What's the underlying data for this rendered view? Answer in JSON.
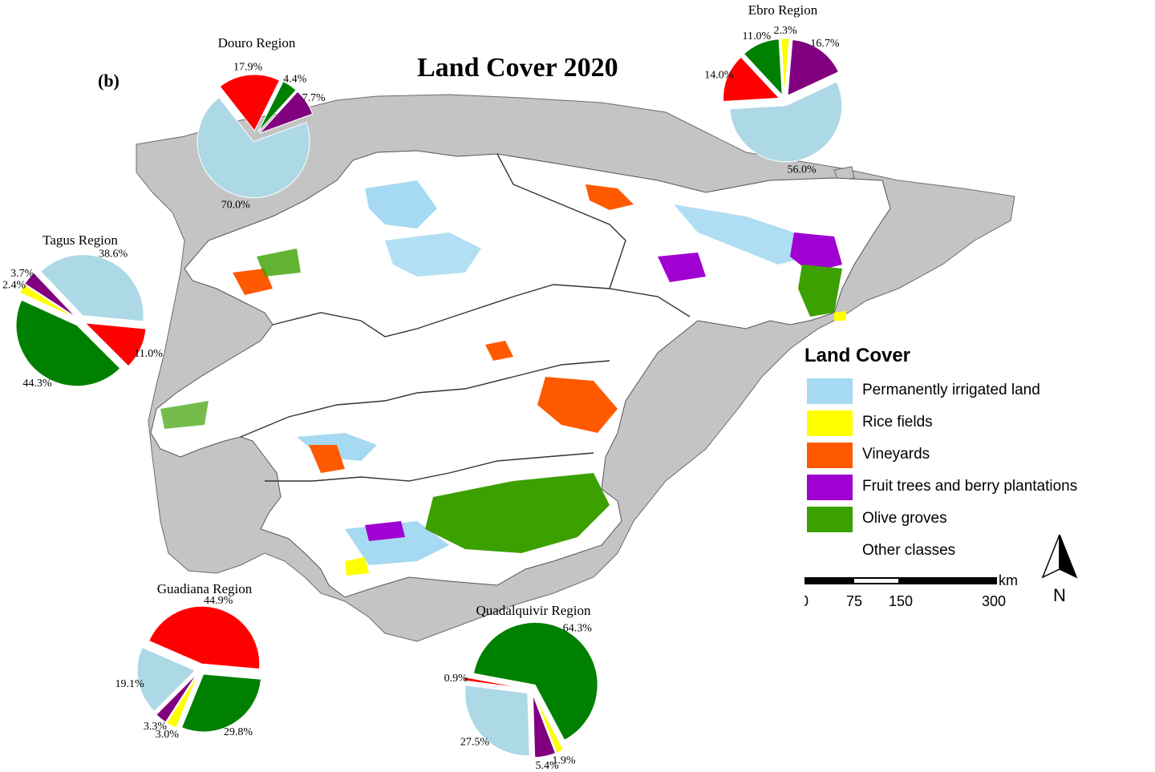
{
  "title": "Land Cover 2020",
  "panel_label": "(b)",
  "legend": {
    "title": "Land Cover",
    "items": [
      {
        "label": "Permanently irrigated land",
        "color": "#a6d9f2"
      },
      {
        "label": "Rice fields",
        "color": "#ffff00"
      },
      {
        "label": "Vineyards",
        "color": "#ff5a00"
      },
      {
        "label": "Fruit trees and berry plantations",
        "color": "#a000d2"
      },
      {
        "label": "Olive groves",
        "color": "#3ca000"
      },
      {
        "label": "Other classes",
        "color": "#ffffff"
      }
    ]
  },
  "scale_bar": {
    "unit": "km",
    "ticks": [
      "0",
      "75",
      "150",
      "300"
    ]
  },
  "north_label": "N",
  "pie_colors": {
    "irrigated": "#add8e6",
    "rice": "#ffff00",
    "vineyards": "#ff0000",
    "fruit": "#800080",
    "olive": "#008000"
  },
  "chart_data": [
    {
      "type": "pie",
      "title": "Douro Region",
      "labels": [
        "Permanently irrigated land",
        "Vineyards",
        "Olive groves",
        "Fruit trees and berry plantations"
      ],
      "values": [
        70.0,
        17.9,
        4.4,
        7.7
      ],
      "value_labels": [
        "70.0%",
        "17.9%",
        "4.4%",
        "7.7%"
      ]
    },
    {
      "type": "pie",
      "title": "Ebro Region",
      "labels": [
        "Permanently irrigated land",
        "Vineyards",
        "Olive groves",
        "Rice fields",
        "Fruit trees and berry plantations"
      ],
      "values": [
        56.0,
        14.0,
        11.0,
        2.3,
        16.7
      ],
      "value_labels": [
        "56.0%",
        "14.0%",
        "11.0%",
        "2.3%",
        "16.7%"
      ]
    },
    {
      "type": "pie",
      "title": "Tagus Region",
      "labels": [
        "Olive groves",
        "Rice fields",
        "Fruit trees and berry plantations",
        "Permanently irrigated land",
        "Vineyards"
      ],
      "values": [
        44.3,
        2.4,
        3.7,
        38.6,
        11.0
      ],
      "value_labels": [
        "44.3%",
        "2.4%",
        "3.7%",
        "38.6%",
        "11.0%"
      ]
    },
    {
      "type": "pie",
      "title": "Guadiana Region",
      "labels": [
        "Olive groves",
        "Rice fields",
        "Fruit trees and berry plantations",
        "Permanently irrigated land",
        "Vineyards"
      ],
      "values": [
        29.8,
        3.0,
        3.3,
        19.1,
        44.9
      ],
      "value_labels": [
        "29.8%",
        "3.0%",
        "3.3%",
        "19.1%",
        "44.9%"
      ]
    },
    {
      "type": "pie",
      "title": "Quadalquivir Region",
      "labels": [
        "Rice fields",
        "Fruit trees and berry plantations",
        "Permanently irrigated land",
        "Vineyards",
        "Olive groves"
      ],
      "values": [
        1.9,
        5.4,
        27.5,
        0.9,
        64.3
      ],
      "value_labels": [
        "1.9%",
        "5.4%",
        "27.5%",
        "0.9%",
        "64.3%"
      ]
    }
  ]
}
